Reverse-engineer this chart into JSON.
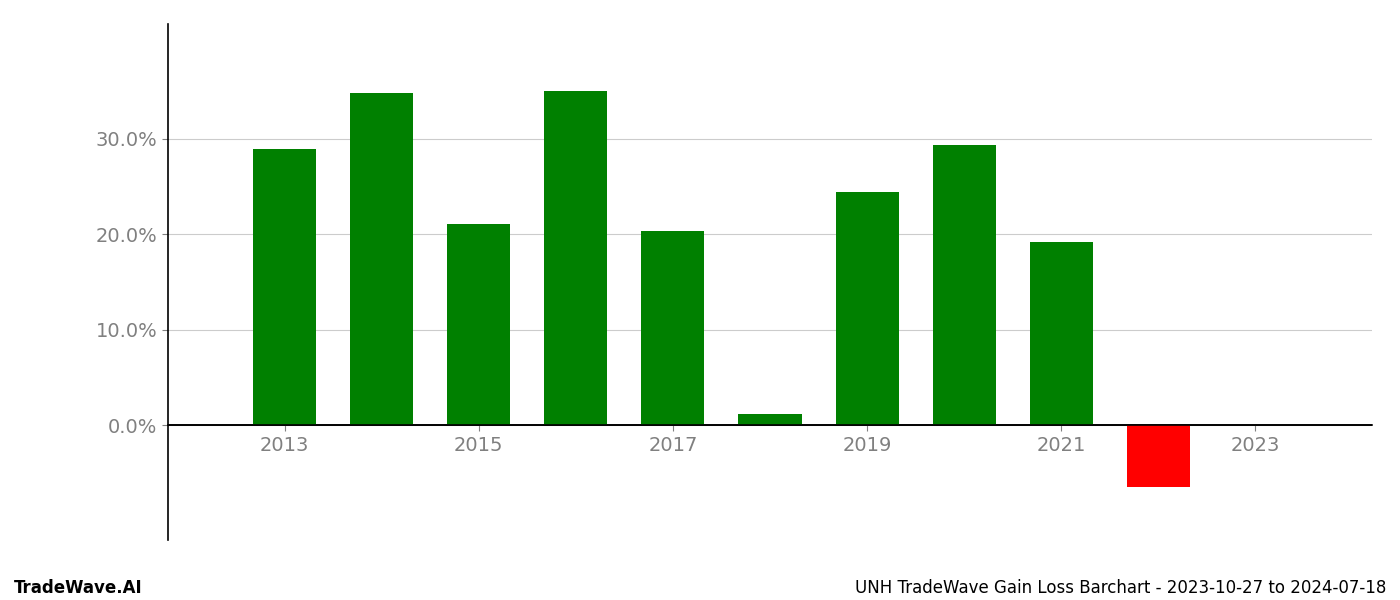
{
  "years": [
    2013,
    2014,
    2015,
    2016,
    2017,
    2018,
    2019,
    2020,
    2021,
    2022
  ],
  "values": [
    28.9,
    34.8,
    21.1,
    35.0,
    20.3,
    1.2,
    24.4,
    29.3,
    19.2,
    -6.5
  ],
  "colors": [
    "#008000",
    "#008000",
    "#008000",
    "#008000",
    "#008000",
    "#008000",
    "#008000",
    "#008000",
    "#008000",
    "#ff0000"
  ],
  "bar_width": 0.65,
  "ylim": [
    -12,
    42
  ],
  "yticks": [
    0.0,
    10.0,
    20.0,
    30.0
  ],
  "tick_fontsize": 14,
  "footer_left": "TradeWave.AI",
  "footer_right": "UNH TradeWave Gain Loss Barchart - 2023-10-27 to 2024-07-18",
  "footer_fontsize": 12,
  "background_color": "#ffffff",
  "grid_color": "#cccccc",
  "xticks": [
    2013,
    2015,
    2017,
    2019,
    2021,
    2023
  ],
  "xlim": [
    2011.8,
    2024.2
  ]
}
